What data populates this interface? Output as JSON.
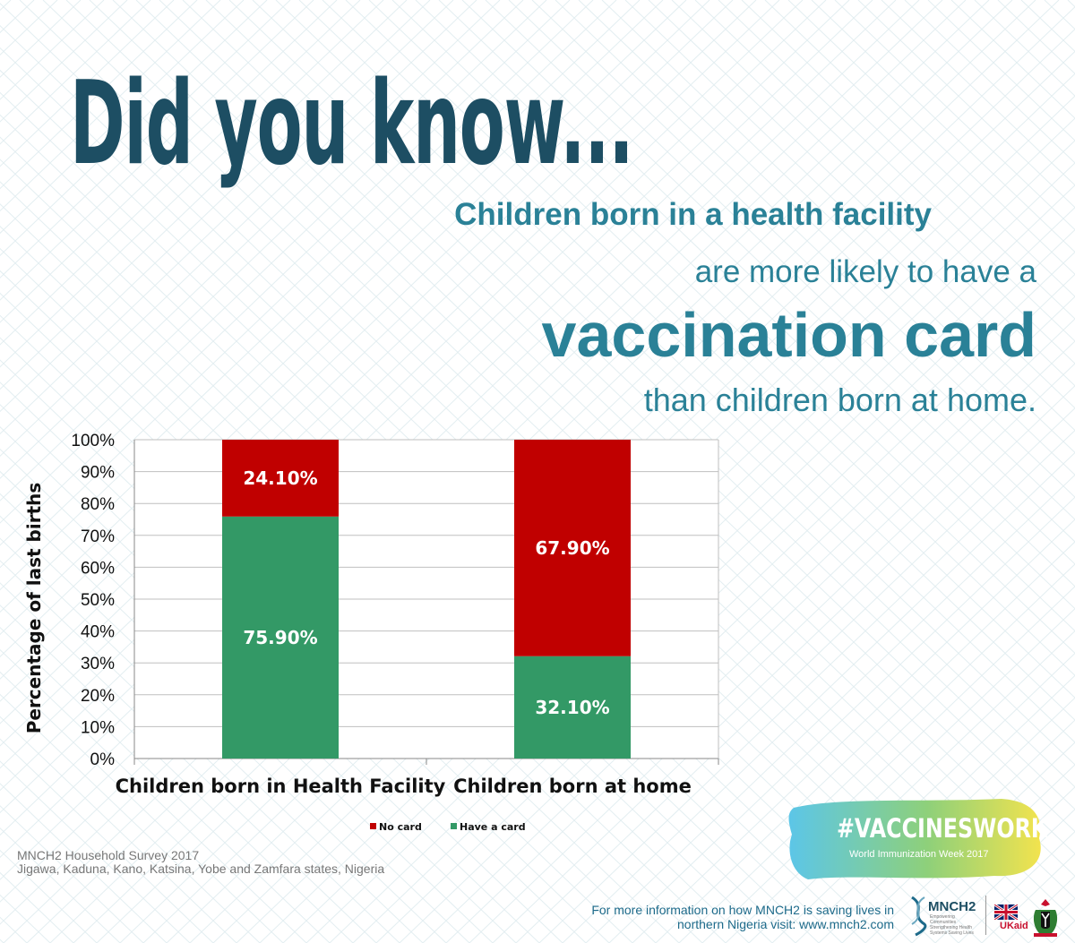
{
  "headline": "Did you know...",
  "tagline": {
    "line1": "Children born in a health facility",
    "line2": "are more likely to have a",
    "line3": "vaccination card",
    "line4": "than children born at home."
  },
  "chart_data": {
    "type": "bar",
    "stacked": true,
    "categories": [
      "Children born in Health Facility",
      "Children born at home"
    ],
    "series": [
      {
        "name": "Have a card",
        "values": [
          75.9,
          32.1
        ],
        "labels": [
          "75.90%",
          "32.10%"
        ],
        "color": "#339966"
      },
      {
        "name": "No card",
        "values": [
          24.1,
          67.9
        ],
        "labels": [
          "24.10%",
          "67.90%"
        ],
        "color": "#c00000"
      }
    ],
    "ylabel": "Percentage of last births",
    "ylim": [
      0,
      100
    ],
    "yticks": [
      "0%",
      "10%",
      "20%",
      "30%",
      "40%",
      "50%",
      "60%",
      "70%",
      "80%",
      "90%",
      "100%"
    ],
    "grid": true,
    "legend": [
      {
        "label": "No card",
        "color": "#c00000"
      },
      {
        "label": "Have a card",
        "color": "#339966"
      }
    ],
    "legend_position": "bottom"
  },
  "source": {
    "line1": "MNCH2 Household Survey 2017",
    "line2": "Jigawa, Kaduna, Kano, Katsina, Yobe and Zamfara states, Nigeria"
  },
  "campaign": {
    "hashtag": "#VACCINESWORK",
    "subtitle": "World Immunization Week 2017"
  },
  "footer": {
    "line1": "For more information on how MNCH2 is saving lives in",
    "line2": "northern Nigeria visit: www.mnch2.com"
  },
  "logos": {
    "mnch2": "MNCH2",
    "mnch2_tagline": "Empowering Communities Strengthening Health Systems Saving Lives",
    "ukaid": "UKaid",
    "crest": "nigeria-coat-of-arms"
  },
  "colors": {
    "headline": "#1d4e63",
    "tagline": "#2a8197",
    "have_card": "#339966",
    "no_card": "#c00000"
  }
}
